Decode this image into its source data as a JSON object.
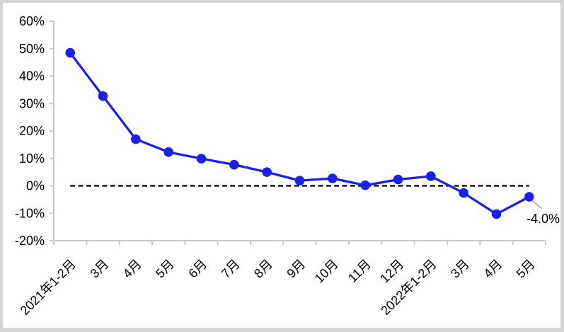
{
  "chart_data": {
    "type": "line",
    "title": "",
    "categories": [
      "2021年1-2月",
      "3月",
      "4月",
      "5月",
      "6月",
      "7月",
      "8月",
      "9月",
      "10月",
      "11月",
      "12月",
      "2022年1-2月",
      "3月",
      "4月",
      "5月"
    ],
    "series": [
      {
        "values": [
          48.5,
          32.7,
          17.0,
          12.3,
          9.9,
          7.7,
          5.0,
          1.9,
          2.7,
          0.2,
          2.3,
          3.5,
          -2.6,
          -10.3,
          -4.0
        ]
      }
    ],
    "ylim": [
      -20,
      60
    ],
    "ytick_step": 10,
    "ytick_suffix": "%",
    "ytick_labels": [
      "60%",
      "50%",
      "40%",
      "30%",
      "20%",
      "10%",
      "0%",
      "-10%",
      "-20%"
    ],
    "xlabel": "",
    "ylabel": "",
    "grid": false,
    "legend_position": "none",
    "zero_line_style": "dashed",
    "x_label_rotation_deg": -45,
    "annotation": {
      "text": "-4.0%",
      "point_index": 14
    }
  },
  "colors": {
    "series_line": "#1c20e6",
    "series_marker": "#1c20e6",
    "axis": "#c8c8c8",
    "zero_line": "#000000",
    "tick_text": "#000000",
    "annotation_text": "#000000",
    "annotation_leader": "#a6a6a6",
    "background": "#ffffff",
    "frame_border": "#d5d5d5"
  }
}
